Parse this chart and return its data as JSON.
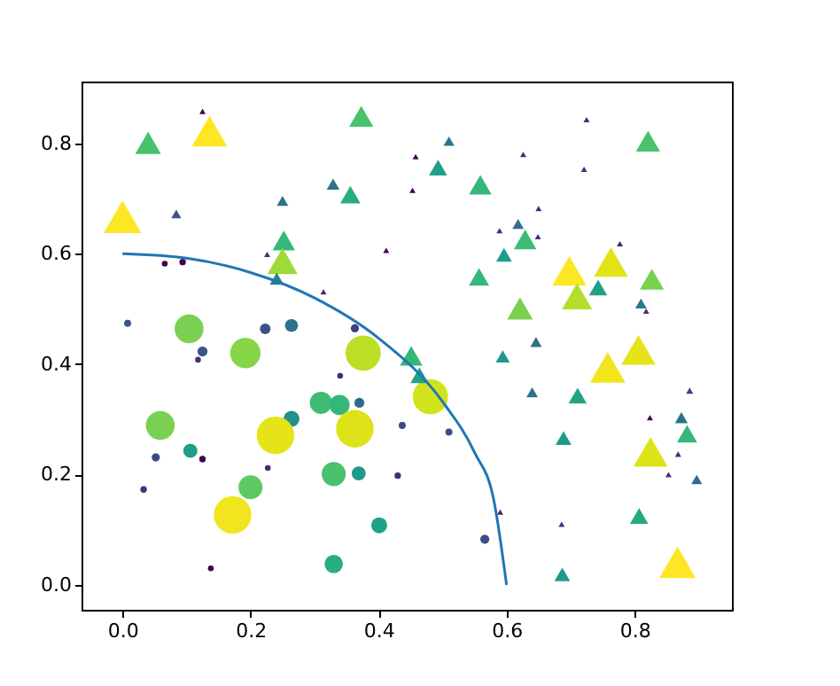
{
  "chart_data": {
    "type": "bubble",
    "xlim": [
      -0.064,
      0.952
    ],
    "ylim": [
      -0.045,
      0.912
    ],
    "grid": false,
    "xticks": [
      {
        "value": 0,
        "label": "0.0"
      },
      {
        "value": 0.2,
        "label": "0.2"
      },
      {
        "value": 0.4,
        "label": "0.4"
      },
      {
        "value": 0.6,
        "label": "0.6"
      },
      {
        "value": 0.8,
        "label": "0.8"
      }
    ],
    "yticks": [
      {
        "value": 0,
        "label": "0.0"
      },
      {
        "value": 0.2,
        "label": "0.2"
      },
      {
        "value": 0.4,
        "label": "0.4"
      },
      {
        "value": 0.6,
        "label": "0.6"
      },
      {
        "value": 0.8,
        "label": "0.8"
      }
    ],
    "series": [
      {
        "marker": "circle",
        "x": [
          0.008,
          0.104,
          0.125,
          0.118,
          0.192,
          0.223,
          0.264,
          0.363,
          0.376,
          0.34,
          0.059,
          0.264,
          0.31,
          0.339,
          0.37,
          0.363,
          0.239,
          0.437,
          0.106,
          0.052,
          0.125,
          0.033,
          0.227,
          0.2,
          0.33,
          0.369,
          0.43,
          0.172,
          0.401,
          0.33,
          0.138,
          0.066,
          0.094,
          0.481,
          0.51,
          0.566
        ],
        "values": [
          0.474,
          0.464,
          0.423,
          0.408,
          0.42,
          0.464,
          0.47,
          0.465,
          0.42,
          0.379,
          0.289,
          0.301,
          0.33,
          0.326,
          0.33,
          0.283,
          0.271,
          0.289,
          0.243,
          0.231,
          0.228,
          0.173,
          0.212,
          0.177,
          0.201,
          0.202,
          0.198,
          0.127,
          0.108,
          0.038,
          0.03,
          0.582,
          0.585,
          0.341,
          0.277,
          0.083
        ],
        "sizes": [
          0.035,
          0.59,
          0.07,
          0.024,
          0.65,
          0.08,
          0.12,
          0.047,
          0.88,
          0.024,
          0.59,
          0.18,
          0.35,
          0.29,
          0.07,
          1,
          1,
          0.035,
          0.14,
          0.047,
          0.03,
          0.03,
          0.024,
          0.41,
          0.41,
          0.14,
          0.03,
          1,
          0.18,
          0.24,
          0.024,
          0.024,
          0.03,
          0.88,
          0.035,
          0.059
        ],
        "colors": [
          "#3b528b",
          "#7ad151",
          "#3b528b",
          "#46327e",
          "#86d549",
          "#3b528b",
          "#2c728e",
          "#443983",
          "#bddf26",
          "#472c7a",
          "#7ad151",
          "#21918c",
          "#3fbc73",
          "#35b779",
          "#31688e",
          "#dde318",
          "#e5e419",
          "#3e4a89",
          "#1f9e89",
          "#3e4989",
          "#440154",
          "#46307e",
          "#472c7a",
          "#5ec962",
          "#4ac16d",
          "#1f988b",
          "#472d7b",
          "#f1e51d",
          "#1fa088",
          "#29af7f",
          "#440154",
          "#440154",
          "#440154",
          "#d2e21b",
          "#3e4a89",
          "#3e4a89"
        ]
      },
      {
        "marker": "triangle",
        "x": [
          0.04,
          0.136,
          0.125,
          0.373,
          0.0,
          0.084,
          0.25,
          0.329,
          0.356,
          0.252,
          0.25,
          0.226,
          0.241,
          0.314,
          0.451,
          0.464,
          0.412,
          0.458,
          0.453,
          0.51,
          0.493,
          0.559,
          0.725,
          0.626,
          0.721,
          0.821,
          0.65,
          0.589,
          0.618,
          0.629,
          0.649,
          0.596,
          0.557,
          0.777,
          0.698,
          0.763,
          0.71,
          0.743,
          0.827,
          0.81,
          0.818,
          0.621,
          0.646,
          0.594,
          0.758,
          0.806,
          0.64,
          0.711,
          0.886,
          0.873,
          0.882,
          0.824,
          0.825,
          0.868,
          0.853,
          0.897,
          0.689,
          0.59,
          0.686,
          0.807,
          0.687,
          0.867
        ],
        "values": [
          0.801,
          0.822,
          0.858,
          0.849,
          0.667,
          0.672,
          0.696,
          0.726,
          0.707,
          0.624,
          0.587,
          0.599,
          0.555,
          0.531,
          0.415,
          0.38,
          0.606,
          0.776,
          0.715,
          0.804,
          0.756,
          0.725,
          0.843,
          0.78,
          0.753,
          0.804,
          0.682,
          0.642,
          0.654,
          0.626,
          0.631,
          0.598,
          0.558,
          0.618,
          0.569,
          0.585,
          0.523,
          0.539,
          0.554,
          0.51,
          0.496,
          0.501,
          0.44,
          0.414,
          0.394,
          0.426,
          0.349,
          0.343,
          0.352,
          0.303,
          0.274,
          0.303,
          0.241,
          0.237,
          0.2,
          0.191,
          0.266,
          0.132,
          0.11,
          0.125,
          0.019,
          0.041
        ],
        "sizes": [
          0.26,
          0.49,
          0.015,
          0.23,
          0.56,
          0.039,
          0.052,
          0.065,
          0.16,
          0.2,
          0.36,
          0.015,
          0.078,
          0.015,
          0.2,
          0.13,
          0.015,
          0.015,
          0.015,
          0.046,
          0.13,
          0.2,
          0.015,
          0.015,
          0.015,
          0.23,
          0.015,
          0.015,
          0.052,
          0.2,
          0.015,
          0.098,
          0.16,
          0.015,
          0.46,
          0.46,
          0.36,
          0.13,
          0.23,
          0.052,
          0.015,
          0.26,
          0.052,
          0.078,
          0.49,
          0.46,
          0.052,
          0.13,
          0.02,
          0.065,
          0.16,
          0.015,
          0.46,
          0.015,
          0.015,
          0.046,
          0.098,
          0.015,
          0.015,
          0.13,
          0.098,
          0.52
        ],
        "colors": [
          "#4ac16d",
          "#fde725",
          "#440154",
          "#4ac16d",
          "#fde725",
          "#3b528b",
          "#2c728e",
          "#2c728e",
          "#27ad81",
          "#35b779",
          "#a0da39",
          "#472c7a",
          "#25848e",
          "#482677",
          "#35b779",
          "#20a386",
          "#440154",
          "#440154",
          "#440154",
          "#2c728e",
          "#1fa187",
          "#35b779",
          "#472c7a",
          "#472c7a",
          "#472c7a",
          "#4ac16d",
          "#482677",
          "#472c7a",
          "#2c728e",
          "#3dbc74",
          "#472c7a",
          "#1f9a8a",
          "#35b779",
          "#482677",
          "#fde725",
          "#e2e418",
          "#b5de2b",
          "#1fa187",
          "#7ad151",
          "#2a788e",
          "#472c7a",
          "#7ad151",
          "#2c728e",
          "#1f988b",
          "#f1e51d",
          "#e5e419",
          "#2c728e",
          "#20a486",
          "#433e85",
          "#2c728e",
          "#35b779",
          "#440154",
          "#dde318",
          "#472c7a",
          "#472c7a",
          "#31688e",
          "#1f9a8a",
          "#482677",
          "#472c7a",
          "#23a983",
          "#1f9a8a",
          "#fde725"
        ]
      },
      {
        "type": "line",
        "color": "#1f77b4",
        "x": [
          0,
          0.1,
          0.2,
          0.3,
          0.4,
          0.5,
          0.55,
          0.58,
          0.6
        ],
        "values": [
          0.6,
          0.592,
          0.566,
          0.52,
          0.447,
          0.332,
          0.24,
          0.154,
          0
        ]
      }
    ]
  }
}
